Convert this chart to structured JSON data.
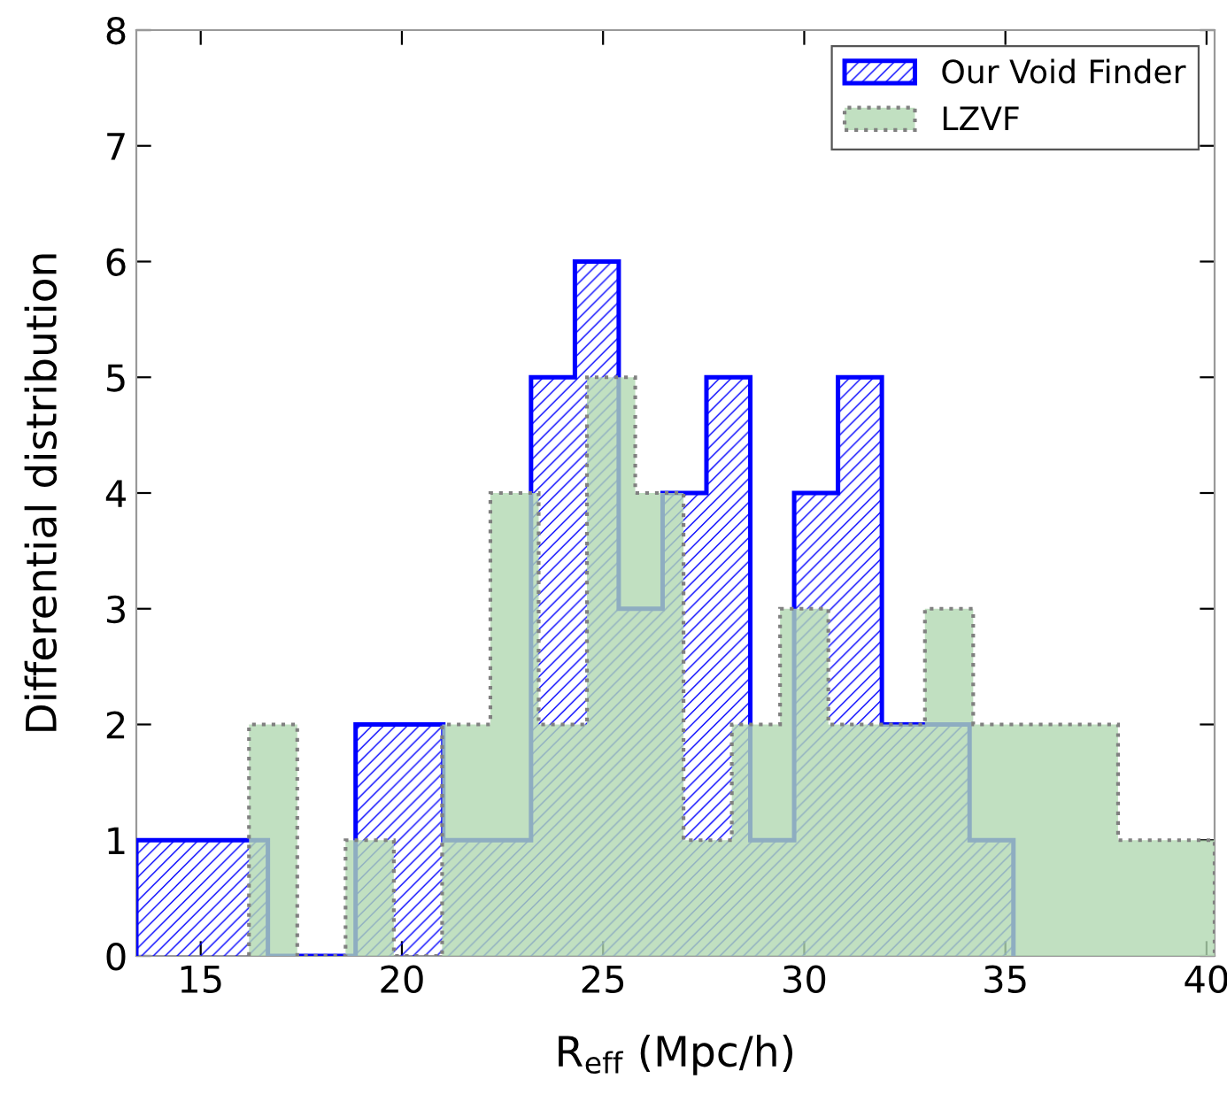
{
  "chart_data": {
    "type": "histogram",
    "xlabel": "R$_{eff}$ (Mpc/h)",
    "ylabel": "Differential distribution",
    "bins": [
      13.4,
      14.49,
      15.58,
      16.67,
      17.76,
      18.85,
      19.94,
      21.03,
      22.12,
      23.21,
      24.3,
      25.39,
      26.48,
      27.57,
      28.66,
      29.75,
      30.84,
      31.93,
      33.02,
      34.11,
      35.2
    ],
    "series": [
      {
        "name": "Our Void Finder",
        "color": "#0000ff",
        "line_style": "solid",
        "values": [
          1,
          1,
          1,
          0,
          0,
          2,
          2,
          1,
          1,
          5,
          6,
          3,
          4,
          5,
          1,
          4,
          5,
          2,
          2,
          1
        ]
      },
      {
        "name": "LZVF",
        "color": "#b2d8b2",
        "line_style": "dotted",
        "bins": [
          16.2,
          17.4,
          18.6,
          19.8,
          21.0,
          22.2,
          23.4,
          24.6,
          25.8,
          27.0,
          28.2,
          29.4,
          30.6,
          31.8,
          33.0,
          34.2,
          35.4,
          36.6,
          37.8,
          39.0,
          40.2
        ],
        "values": [
          2,
          0,
          1,
          0,
          2,
          4,
          2,
          5,
          4,
          1,
          2,
          3,
          2,
          2,
          3,
          2,
          2,
          2,
          1,
          1
        ]
      }
    ],
    "xlim": [
      13.4,
      40.2
    ],
    "ylim": [
      0,
      8
    ],
    "xticks": [
      15,
      20,
      25,
      30,
      35,
      40
    ],
    "yticks": [
      0,
      1,
      2,
      3,
      4,
      5,
      6,
      7,
      8
    ],
    "grid": false,
    "legend": "top right"
  }
}
